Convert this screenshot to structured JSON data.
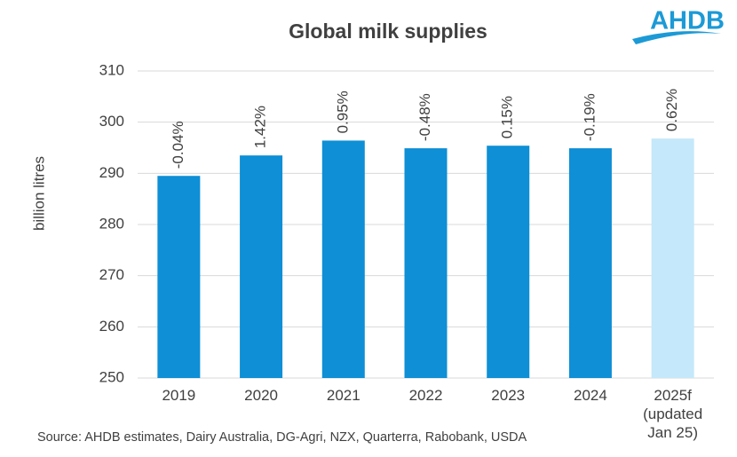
{
  "chart_data": {
    "type": "bar",
    "title": "Global milk supplies",
    "y_label": "billion litres",
    "categories": [
      "2019",
      "2020",
      "2021",
      "2022",
      "2023",
      "2024",
      "2025f\n(updated\nJan 25)"
    ],
    "values": [
      289.5,
      293.5,
      296.4,
      294.9,
      295.4,
      294.9,
      296.8
    ],
    "annotations": [
      "-0.04%",
      "1.42%",
      "0.95%",
      "-0.48%",
      "0.15%",
      "-0.19%",
      "0.62%"
    ],
    "colors": [
      "#0e8fd6",
      "#0e8fd6",
      "#0e8fd6",
      "#0e8fd6",
      "#0e8fd6",
      "#0e8fd6",
      "#c5e8fa"
    ],
    "ylim": [
      250,
      310
    ],
    "yticks": [
      250,
      260,
      270,
      280,
      290,
      300,
      310
    ],
    "grid": true,
    "source": "Source: AHDB estimates, Dairy Australia, DG-Agri, NZX, Quarterra, Rabobank, USDA",
    "logo": "AHDB"
  }
}
